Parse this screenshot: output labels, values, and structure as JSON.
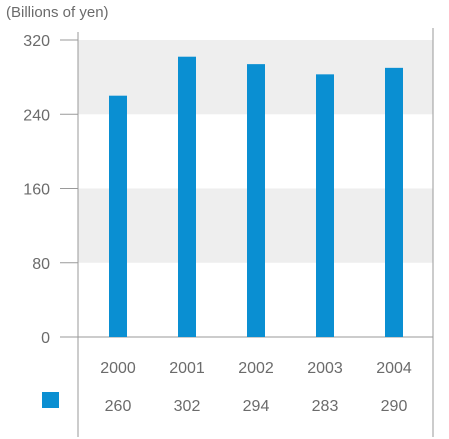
{
  "chart_data": {
    "type": "bar",
    "unit_label": "(Billions of yen)",
    "categories": [
      "2000",
      "2001",
      "2002",
      "2003",
      "2004"
    ],
    "values": [
      260,
      302,
      294,
      283,
      290
    ],
    "value_labels": [
      "260",
      "302",
      "294",
      "283",
      "290"
    ],
    "yticks": [
      "0",
      "80",
      "160",
      "240",
      "320"
    ],
    "ylim": [
      0,
      320
    ],
    "grid_bands": [
      [
        80,
        160
      ],
      [
        240,
        320
      ]
    ],
    "colors": {
      "bar": "#0a8fd2",
      "band": "#eeeeee",
      "axis": "#9a9a9a",
      "text": "#6b6b6b"
    }
  }
}
